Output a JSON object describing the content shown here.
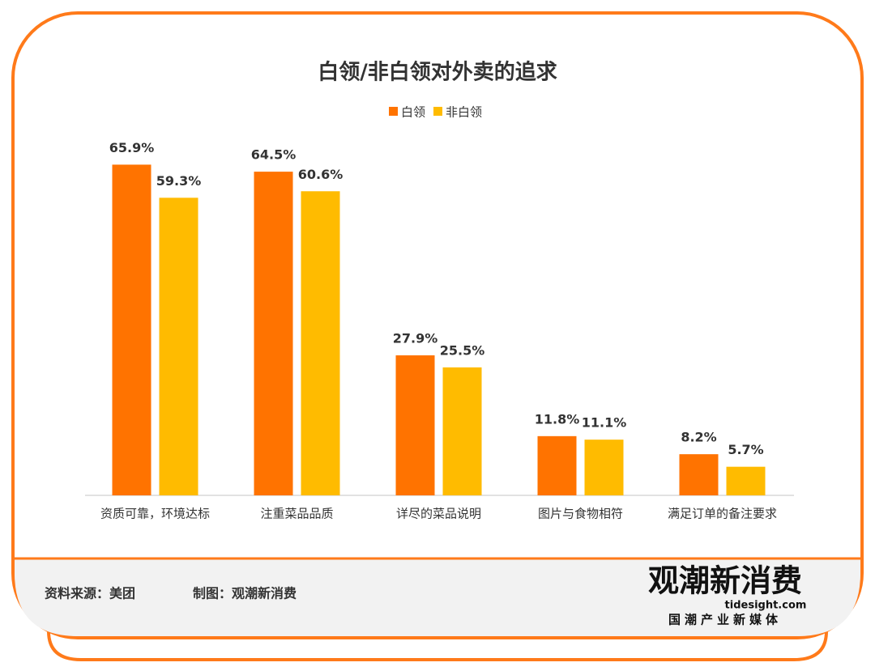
{
  "chart_data": {
    "type": "bar",
    "title": "白领/非白领对外卖的追求",
    "categories": [
      "资质可靠，环境达标",
      "注重菜品品质",
      "详尽的菜品说明",
      "图片与食物相符",
      "满足订单的备注要求"
    ],
    "series": [
      {
        "name": "白领",
        "color": "#ff7300",
        "values": [
          65.9,
          64.5,
          27.9,
          11.8,
          8.2
        ],
        "value_labels": [
          "65.9%",
          "64.5%",
          "27.9%",
          "11.8%",
          "8.2%"
        ]
      },
      {
        "name": "非白领",
        "color": "#ffbb00",
        "values": [
          59.3,
          60.6,
          25.5,
          11.1,
          5.7
        ],
        "value_labels": [
          "59.3%",
          "60.6%",
          "25.5%",
          "11.1%",
          "5.7%"
        ]
      }
    ],
    "legend": "top"
  },
  "footer": {
    "source": "资料来源：美团",
    "maker": "制图：观潮新消费",
    "logo": {
      "name": "观潮新消费",
      "site": "tidesight.com",
      "slogan": "国潮产业新媒体"
    }
  }
}
